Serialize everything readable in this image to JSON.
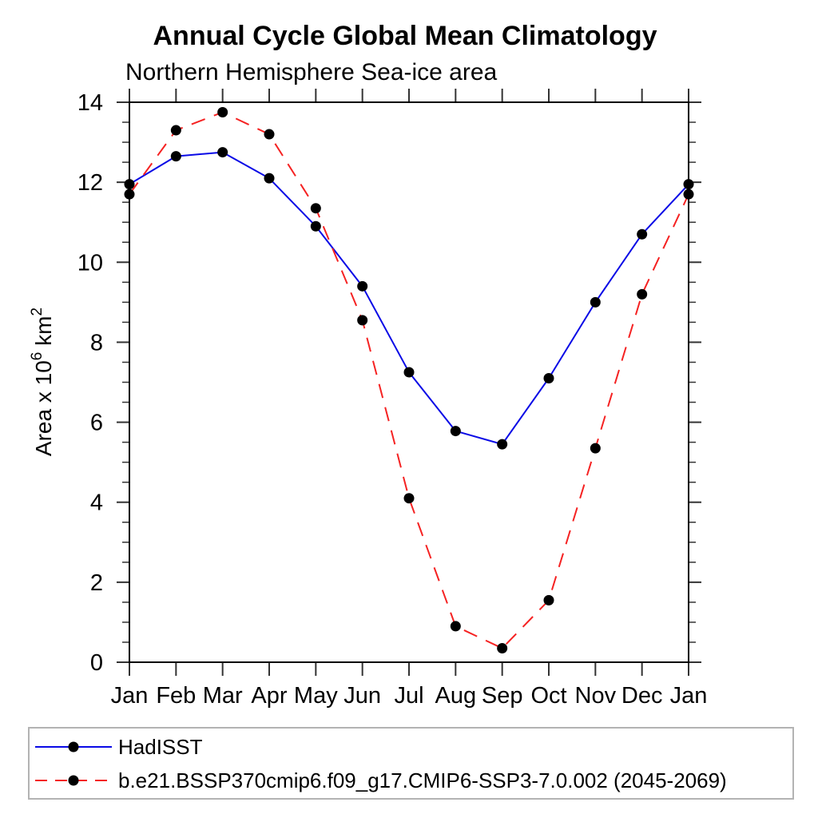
{
  "title": "Annual Cycle Global Mean Climatology",
  "subtitle": "Northern Hemisphere Sea-ice area",
  "chart_data": {
    "type": "line",
    "title": "Annual Cycle Global Mean Climatology",
    "subtitle": "Northern Hemisphere Sea-ice area",
    "xlabel": "",
    "ylabel": "Area x 10⁶ km²",
    "ylabel_parts": [
      {
        "t": "Area x 10"
      },
      {
        "t": "6",
        "sup": true
      },
      {
        "t": " km"
      },
      {
        "t": "2",
        "sup": true
      }
    ],
    "ylim": [
      0,
      14
    ],
    "yticks_major": [
      0,
      2,
      4,
      6,
      8,
      10,
      12,
      14
    ],
    "ytick_minor_step": 0.5,
    "grid": false,
    "legend_position": "bottom-left-box",
    "categories": [
      "Jan",
      "Feb",
      "Mar",
      "Apr",
      "May",
      "Jun",
      "Jul",
      "Aug",
      "Sep",
      "Oct",
      "Nov",
      "Dec",
      "Jan"
    ],
    "series": [
      {
        "name": "HadISST",
        "line_style": "solid",
        "color": "#0a0ae6",
        "marker": "circle",
        "marker_color": "#000000",
        "values": [
          11.95,
          12.65,
          12.75,
          12.1,
          10.9,
          9.4,
          7.25,
          5.78,
          5.45,
          7.1,
          9.0,
          10.7,
          11.95
        ]
      },
      {
        "name": "b.e21.BSSP370cmip6.f09_g17.CMIP6-SSP3-7.0.002 (2045-2069)",
        "line_style": "dashed",
        "color": "#f52222",
        "marker": "circle",
        "marker_color": "#000000",
        "values": [
          11.7,
          13.3,
          13.75,
          13.2,
          11.35,
          8.55,
          4.1,
          0.9,
          0.35,
          1.55,
          5.35,
          9.2,
          11.7
        ]
      }
    ]
  }
}
